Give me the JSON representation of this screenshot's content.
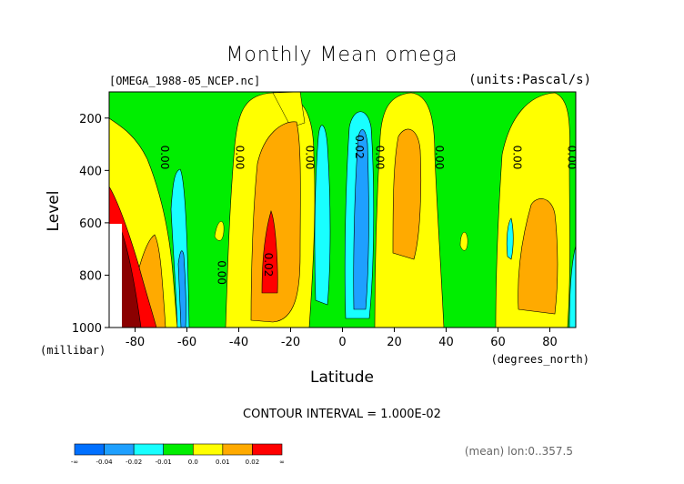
{
  "chart_data": {
    "type": "contour",
    "title": "Monthly Mean omega",
    "source_label": "[OMEGA_1988-05_NCEP.nc]",
    "units_label": "(units:Pascal/s)",
    "xlabel": "Latitude",
    "xunit": "(degrees_north)",
    "ylabel": "Level",
    "yunit": "(millibar)",
    "xlim": [
      -90,
      90
    ],
    "ylim": [
      1000,
      100
    ],
    "x_ticks": [
      -80,
      -60,
      -40,
      -20,
      0,
      20,
      40,
      60,
      80
    ],
    "y_ticks": [
      200,
      400,
      600,
      800,
      1000
    ],
    "contour_interval_text": "CONTOUR INTERVAL = 1.000E-02",
    "footer_text": "(mean) lon:0..357.5",
    "contour_labels": [
      {
        "text": "0.00",
        "x": -70,
        "y": 350
      },
      {
        "text": "0.00",
        "x": -41,
        "y": 350
      },
      {
        "text": "0.00",
        "x": -14,
        "y": 350
      },
      {
        "text": "0.02",
        "x": 5,
        "y": 310
      },
      {
        "text": "0.00",
        "x": 13,
        "y": 350
      },
      {
        "text": "0.00",
        "x": 36,
        "y": 350
      },
      {
        "text": "0.00",
        "x": 66,
        "y": 350
      },
      {
        "text": "0.00",
        "x": 87,
        "y": 350
      },
      {
        "text": "0.00",
        "x": -48,
        "y": 790
      },
      {
        "text": "0.02",
        "x": -30,
        "y": 760
      }
    ],
    "colorbar": {
      "colors": [
        "#0070ff",
        "#1ea0ff",
        "#18ffff",
        "#00ee00",
        "#ffff00",
        "#ffaa00",
        "#ff0000"
      ],
      "labels": [
        "-∞",
        "-0.04",
        "-0.02",
        "-0.01",
        "0.0",
        "0.01",
        "0.02",
        "∞"
      ]
    }
  }
}
